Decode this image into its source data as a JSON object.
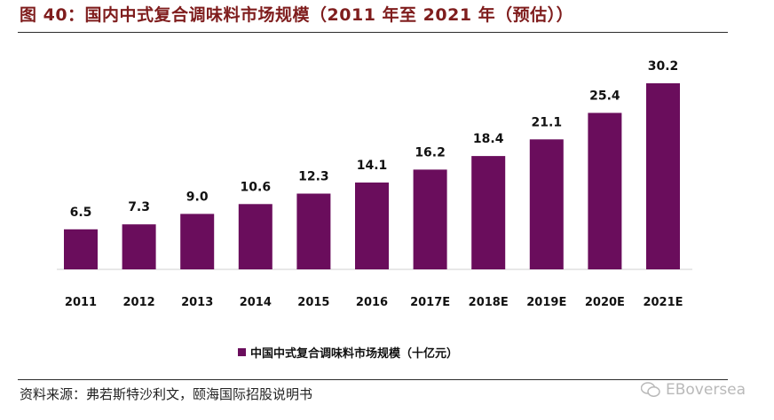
{
  "figure": {
    "title": "图 40：国内中式复合调味料市场规模（2011 年至 2021 年（预估））",
    "source": "资料来源：弗若斯特沙利文，颐海国际招股说明书",
    "watermark": "EBoversea"
  },
  "colors": {
    "bar": "#6a0d5c",
    "title": "#7f1d1d"
  },
  "chart_data": {
    "type": "bar",
    "title": "",
    "xlabel": "",
    "ylabel": "",
    "categories": [
      "2011",
      "2012",
      "2013",
      "2014",
      "2015",
      "2016",
      "2017E",
      "2018E",
      "2019E",
      "2020E",
      "2021E"
    ],
    "series": [
      {
        "name": "中国中式复合调味料市场规模（十亿元）",
        "values": [
          6.5,
          7.3,
          9.0,
          10.6,
          12.3,
          14.1,
          16.2,
          18.4,
          21.1,
          25.4,
          30.2
        ],
        "labels": [
          "6.5",
          "7.3",
          "9.0",
          "10.6",
          "12.3",
          "14.1",
          "16.2",
          "18.4",
          "21.1",
          "25.4",
          "30.2"
        ]
      }
    ],
    "ylim": [
      0,
      30.2
    ],
    "grid": false,
    "legend": "bottom"
  }
}
